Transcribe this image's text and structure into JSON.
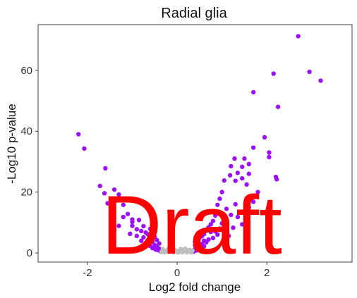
{
  "chart_data": {
    "type": "scatter",
    "title": "Radial glia",
    "xlabel": "Log2 fold change",
    "ylabel": "-Log10 p-value",
    "xlim": [
      -3.1,
      3.9
    ],
    "ylim": [
      -3.0,
      75.0
    ],
    "xticks": [
      -2,
      0,
      2
    ],
    "xtick_labels": [
      "-2",
      "0",
      "2"
    ],
    "yticks": [
      0,
      20,
      40,
      60
    ],
    "ytick_labels": [
      "0",
      "20",
      "40",
      "60"
    ],
    "grid": false,
    "legend": "none",
    "series": [
      {
        "color": "#9b10f7",
        "points": [
          [
            2.7,
            71.2
          ],
          [
            2.95,
            59.5
          ],
          [
            2.15,
            58.9
          ],
          [
            3.2,
            56.6
          ],
          [
            1.7,
            52.8
          ],
          [
            2.25,
            48.0
          ],
          [
            1.95,
            38.0
          ],
          [
            -2.2,
            39.0
          ],
          [
            -2.07,
            34.3
          ],
          [
            1.7,
            34.6
          ],
          [
            2.05,
            33.0
          ],
          [
            2.05,
            31.5
          ],
          [
            1.5,
            31.0
          ],
          [
            1.28,
            31.0
          ],
          [
            1.6,
            29.2
          ],
          [
            1.45,
            28.3
          ],
          [
            1.2,
            28.5
          ],
          [
            -1.6,
            27.8
          ],
          [
            1.35,
            26.3
          ],
          [
            1.6,
            26.0
          ],
          [
            1.18,
            25.5
          ],
          [
            2.2,
            25.0
          ],
          [
            2.22,
            24.2
          ],
          [
            1.45,
            24.5
          ],
          [
            1.3,
            23.7
          ],
          [
            1.05,
            23.8
          ],
          [
            1.55,
            22.5
          ],
          [
            -1.72,
            22.0
          ],
          [
            -1.4,
            20.8
          ],
          [
            1.0,
            20.0
          ],
          [
            1.8,
            20.0
          ],
          [
            -1.62,
            19.6
          ],
          [
            -1.3,
            19.2
          ],
          [
            0.95,
            17.8
          ],
          [
            1.7,
            16.8
          ],
          [
            -1.55,
            16.3
          ],
          [
            0.9,
            15.8
          ],
          [
            1.3,
            16.0
          ],
          [
            -1.2,
            15.8
          ],
          [
            1.6,
            15.0
          ],
          [
            -1.45,
            15.0
          ],
          [
            1.1,
            14.5
          ],
          [
            1.5,
            13.8
          ],
          [
            1.2,
            12.5
          ],
          [
            -1.1,
            12.8
          ],
          [
            0.85,
            12.3
          ],
          [
            1.35,
            11.8
          ],
          [
            -1.2,
            11.8
          ],
          [
            -1.0,
            11.0
          ],
          [
            -0.85,
            10.8
          ],
          [
            0.8,
            10.5
          ],
          [
            -1.0,
            10.2
          ],
          [
            1.0,
            9.7
          ],
          [
            0.75,
            9.4
          ],
          [
            1.45,
            9.4
          ],
          [
            -1.3,
            8.9
          ],
          [
            -1.0,
            8.9
          ],
          [
            -0.75,
            8.8
          ],
          [
            0.7,
            8.4
          ],
          [
            1.25,
            8.3
          ],
          [
            -0.9,
            7.8
          ],
          [
            0.95,
            8.0
          ],
          [
            -0.6,
            7.9
          ],
          [
            0.65,
            7.6
          ],
          [
            -1.4,
            7.3
          ],
          [
            -0.8,
            7.2
          ],
          [
            0.85,
            7.1
          ],
          [
            -0.7,
            6.7
          ],
          [
            0.75,
            6.9
          ],
          [
            1.05,
            6.4
          ],
          [
            -1.05,
            6.3
          ],
          [
            -0.65,
            6.1
          ],
          [
            0.6,
            6.2
          ],
          [
            0.9,
            6.0
          ],
          [
            -0.55,
            5.8
          ],
          [
            -0.9,
            5.6
          ],
          [
            0.55,
            5.5
          ],
          [
            1.15,
            5.6
          ],
          [
            -0.5,
            5.2
          ],
          [
            -0.75,
            5.1
          ],
          [
            0.5,
            5.0
          ],
          [
            0.8,
            4.9
          ],
          [
            -0.6,
            4.6
          ],
          [
            0.45,
            4.5
          ],
          [
            0.7,
            4.4
          ],
          [
            -0.45,
            4.2
          ],
          [
            -0.8,
            4.0
          ],
          [
            0.6,
            4.0
          ],
          [
            -0.55,
            3.7
          ],
          [
            0.4,
            3.6
          ],
          [
            0.65,
            3.5
          ],
          [
            -0.7,
            3.3
          ],
          [
            -0.4,
            3.1
          ],
          [
            0.45,
            3.0
          ],
          [
            0.55,
            2.9
          ],
          [
            -0.5,
            2.6
          ],
          [
            0.4,
            2.5
          ],
          [
            -0.6,
            2.3
          ],
          [
            0.6,
            2.2
          ],
          [
            -0.45,
            2.0
          ],
          [
            0.45,
            1.8
          ],
          [
            -0.55,
            1.6
          ],
          [
            0.5,
            1.5
          ],
          [
            -0.4,
            1.4
          ],
          [
            0.4,
            1.3
          ],
          [
            -0.48,
            1.1
          ],
          [
            0.5,
            1.0
          ],
          [
            0.42,
            0.8
          ],
          [
            -0.42,
            0.9
          ],
          [
            0.38,
            0.6
          ],
          [
            -0.38,
            0.6
          ],
          [
            0.36,
            0.4
          ]
        ]
      },
      {
        "color": "#bebebe",
        "points": [
          [
            -0.35,
            0.3
          ],
          [
            -0.3,
            0.9
          ],
          [
            -0.25,
            0.5
          ],
          [
            -0.2,
            1.3
          ],
          [
            -0.15,
            0.7
          ],
          [
            -0.1,
            0.4
          ],
          [
            -0.05,
            1.0
          ],
          [
            0.0,
            0.5
          ],
          [
            0.05,
            0.8
          ],
          [
            0.1,
            0.3
          ],
          [
            0.15,
            1.1
          ],
          [
            0.2,
            0.6
          ],
          [
            0.25,
            0.9
          ],
          [
            0.3,
            0.4
          ],
          [
            -0.28,
            0.2
          ],
          [
            -0.18,
            0.3
          ],
          [
            -0.08,
            0.2
          ],
          [
            0.02,
            0.15
          ],
          [
            0.12,
            0.25
          ],
          [
            0.22,
            0.2
          ],
          [
            0.32,
            0.15
          ],
          [
            -0.22,
            0.8
          ],
          [
            0.18,
            1.4
          ],
          [
            -0.12,
            1.2
          ],
          [
            0.08,
            1.3
          ],
          [
            0.28,
            1.0
          ],
          [
            -0.32,
            1.2
          ],
          [
            0.34,
            0.8
          ]
        ]
      }
    ]
  },
  "watermark": {
    "text": "Draft",
    "color": "#ff0000"
  }
}
